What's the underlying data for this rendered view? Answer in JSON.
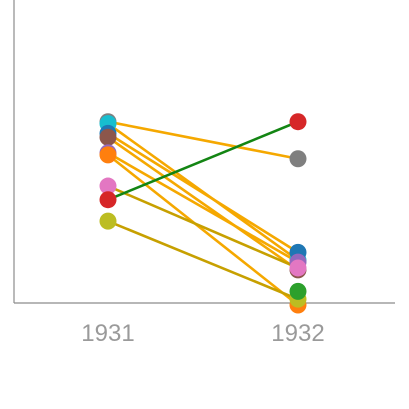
{
  "chart_data": {
    "type": "slope",
    "title": "",
    "xlabel": "",
    "ylabel": "",
    "categories": [
      "1931",
      "1932"
    ],
    "ylim": [
      0,
      100
    ],
    "grid": false,
    "legend": "none",
    "series": [
      {
        "color": "#7f7f7f",
        "values": [
          94,
          75
        ]
      },
      {
        "color": "#17becf",
        "values": [
          93,
          23
        ]
      },
      {
        "color": "#1f77b4",
        "values": [
          88,
          27
        ]
      },
      {
        "color": "#8c564b",
        "values": [
          86,
          18
        ]
      },
      {
        "color": "#9467bd",
        "values": [
          78,
          22
        ]
      },
      {
        "color": "#ff7f0e",
        "values": [
          77,
          0
        ]
      },
      {
        "color": "#e377c2",
        "values": [
          61,
          19
        ]
      },
      {
        "color": "#d62728",
        "values": [
          54,
          94
        ]
      },
      {
        "color": "#bcbd22",
        "values": [
          43,
          3
        ]
      },
      {
        "color": "#2ca02c",
        "values": [
          null,
          7
        ]
      }
    ],
    "line_colors": {
      "decrease": "#f5a800",
      "increase": "#138513",
      "minor": "#c7a000"
    }
  }
}
